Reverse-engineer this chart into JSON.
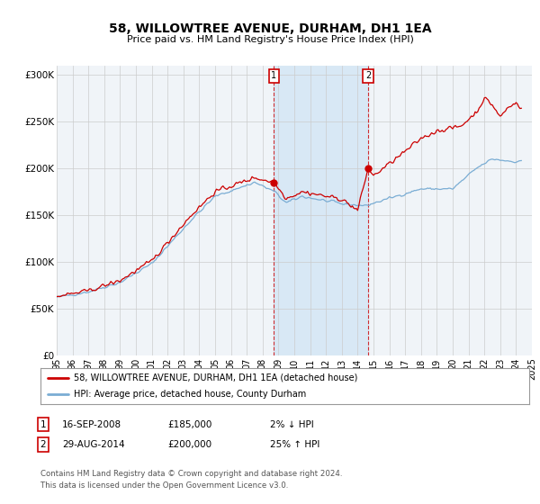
{
  "title": "58, WILLOWTREE AVENUE, DURHAM, DH1 1EA",
  "subtitle": "Price paid vs. HM Land Registry's House Price Index (HPI)",
  "background_color": "#ffffff",
  "plot_bg_color": "#f0f4f8",
  "grid_color": "#cccccc",
  "red_line_color": "#cc0000",
  "blue_line_color": "#7aadd4",
  "highlight_color": "#d8e8f5",
  "legend_red_label": "58, WILLOWTREE AVENUE, DURHAM, DH1 1EA (detached house)",
  "legend_blue_label": "HPI: Average price, detached house, County Durham",
  "table_row1": [
    "1",
    "16-SEP-2008",
    "£185,000",
    "2% ↓ HPI"
  ],
  "table_row2": [
    "2",
    "29-AUG-2014",
    "£200,000",
    "25% ↑ HPI"
  ],
  "footer": "Contains HM Land Registry data © Crown copyright and database right 2024.\nThis data is licensed under the Open Government Licence v3.0.",
  "ylim": [
    0,
    310000
  ],
  "yticks": [
    0,
    50000,
    100000,
    150000,
    200000,
    250000,
    300000
  ],
  "ytick_labels": [
    "£0",
    "£50K",
    "£100K",
    "£150K",
    "£200K",
    "£250K",
    "£300K"
  ],
  "highlight_x1": 2008.71,
  "highlight_x2": 2014.66,
  "sale1_x": 2008.71,
  "sale1_y": 185000,
  "sale2_x": 2014.66,
  "sale2_y": 200000,
  "xlim": [
    1995,
    2025
  ],
  "xtick_years": [
    1995,
    1996,
    1997,
    1998,
    1999,
    2000,
    2001,
    2002,
    2003,
    2004,
    2005,
    2006,
    2007,
    2008,
    2009,
    2010,
    2011,
    2012,
    2013,
    2014,
    2015,
    2016,
    2017,
    2018,
    2019,
    2020,
    2021,
    2022,
    2023,
    2024,
    2025
  ]
}
